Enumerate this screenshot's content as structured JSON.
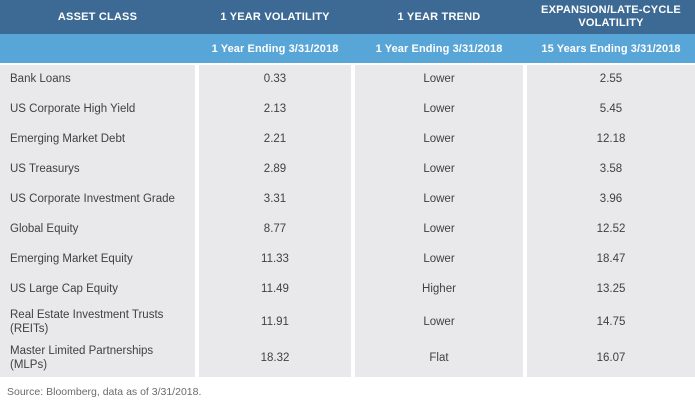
{
  "header": {
    "col1": "ASSET CLASS",
    "col2": "1 YEAR VOLATILITY",
    "col3": "1 YEAR TREND",
    "col4": "EXPANSION/LATE-CYCLE VOLATILITY",
    "sub1": "",
    "sub2": "1 Year Ending 3/31/2018",
    "sub3": "1 Year Ending 3/31/2018",
    "sub4": "15 Years Ending 3/31/2018"
  },
  "rows": [
    {
      "asset": "Bank Loans",
      "vol1yr": "0.33",
      "trend": "Lower",
      "vol15yr": "2.55"
    },
    {
      "asset": "US Corporate High Yield",
      "vol1yr": "2.13",
      "trend": "Lower",
      "vol15yr": "5.45"
    },
    {
      "asset": "Emerging Market Debt",
      "vol1yr": "2.21",
      "trend": "Lower",
      "vol15yr": "12.18"
    },
    {
      "asset": "US Treasurys",
      "vol1yr": "2.89",
      "trend": "Lower",
      "vol15yr": "3.58"
    },
    {
      "asset": "US Corporate Investment Grade",
      "vol1yr": "3.31",
      "trend": "Lower",
      "vol15yr": "3.96"
    },
    {
      "asset": "Global Equity",
      "vol1yr": "8.77",
      "trend": "Lower",
      "vol15yr": "12.52"
    },
    {
      "asset": "Emerging Market Equity",
      "vol1yr": "11.33",
      "trend": "Lower",
      "vol15yr": "18.47"
    },
    {
      "asset": "US Large Cap Equity",
      "vol1yr": "11.49",
      "trend": "Higher",
      "vol15yr": "13.25"
    },
    {
      "asset": "Real Estate Investment Trusts (REITs)",
      "vol1yr": "11.91",
      "trend": "Lower",
      "vol15yr": "14.75"
    },
    {
      "asset": "Master Limited Partnerships (MLPs)",
      "vol1yr": "18.32",
      "trend": "Flat",
      "vol15yr": "16.07"
    }
  ],
  "footer": {
    "source": "Source: Bloomberg, data as of 3/31/2018."
  },
  "colors": {
    "header_dark_blue": "#3c6a94",
    "header_light_blue": "#58a5d8",
    "row_gray": "#e9e9eb",
    "body_text": "#414141",
    "source_text": "#6b6b6b"
  },
  "chart_data": {
    "type": "table",
    "title": "Asset class volatility: 1 year vs. expansion/late-cycle",
    "columns": [
      "Asset Class",
      "1 Year Volatility (1 Year Ending 3/31/2018)",
      "1 Year Trend (1 Year Ending 3/31/2018)",
      "Expansion/Late-Cycle Volatility (15 Years Ending 3/31/2018)"
    ],
    "rows": [
      [
        "Bank Loans",
        0.33,
        "Lower",
        2.55
      ],
      [
        "US Corporate High Yield",
        2.13,
        "Lower",
        5.45
      ],
      [
        "Emerging Market Debt",
        2.21,
        "Lower",
        12.18
      ],
      [
        "US Treasurys",
        2.89,
        "Lower",
        3.58
      ],
      [
        "US Corporate Investment Grade",
        3.31,
        "Lower",
        3.96
      ],
      [
        "Global Equity",
        8.77,
        "Lower",
        12.52
      ],
      [
        "Emerging Market Equity",
        11.33,
        "Lower",
        18.47
      ],
      [
        "US Large Cap Equity",
        11.49,
        "Higher",
        13.25
      ],
      [
        "Real Estate Investment Trusts (REITs)",
        11.91,
        "Lower",
        14.75
      ],
      [
        "Master Limited Partnerships (MLPs)",
        18.32,
        "Flat",
        16.07
      ]
    ],
    "source": "Source: Bloomberg, data as of 3/31/2018."
  }
}
